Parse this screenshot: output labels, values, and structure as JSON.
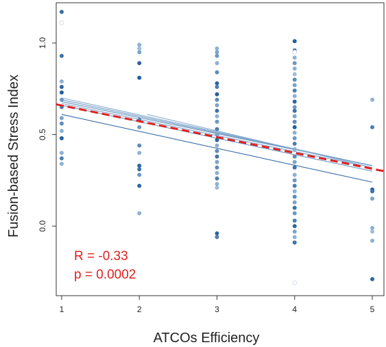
{
  "chart_data": {
    "type": "scatter",
    "title": "",
    "xlabel": "ATCOs Efficiency",
    "ylabel": "Fusion-based Stress Index",
    "xlim": [
      0.93,
      5.15
    ],
    "ylim": [
      -0.38,
      1.22
    ],
    "xticks": [
      1,
      2,
      3,
      4,
      5
    ],
    "xtick_labels": [
      "1",
      "2",
      "3",
      "4",
      "5"
    ],
    "yticks": [
      0.0,
      0.5,
      1.0
    ],
    "ytick_labels": [
      "0.0",
      "0.5",
      "1.0"
    ],
    "grid": false,
    "legend": "none",
    "colors": {
      "overall_fit": "#e02020",
      "points_dark": "#1f5a99",
      "points_light": "#bcd6ea",
      "annotation": "#e02020"
    },
    "points": [
      {
        "x": 1,
        "y": 1.17,
        "shade": 0.85
      },
      {
        "x": 1,
        "y": 1.11,
        "shade": 0.1
      },
      {
        "x": 1,
        "y": 0.93,
        "shade": 0.8
      },
      {
        "x": 1,
        "y": 0.79,
        "shade": 0.3
      },
      {
        "x": 1,
        "y": 0.76,
        "shade": 0.9
      },
      {
        "x": 1,
        "y": 0.73,
        "shade": 0.95
      },
      {
        "x": 1,
        "y": 0.69,
        "shade": 0.5
      },
      {
        "x": 1,
        "y": 0.65,
        "shade": 0.7
      },
      {
        "x": 1,
        "y": 0.59,
        "shade": 0.4
      },
      {
        "x": 1,
        "y": 0.56,
        "shade": 0.6
      },
      {
        "x": 1,
        "y": 0.52,
        "shade": 0.3
      },
      {
        "x": 1,
        "y": 0.48,
        "shade": 0.95
      },
      {
        "x": 1,
        "y": 0.4,
        "shade": 0.3
      },
      {
        "x": 1,
        "y": 0.37,
        "shade": 0.7
      },
      {
        "x": 1,
        "y": 0.34,
        "shade": 0.3
      },
      {
        "x": 2,
        "y": 0.99,
        "shade": 0.3
      },
      {
        "x": 2,
        "y": 0.97,
        "shade": 0.2
      },
      {
        "x": 2,
        "y": 0.95,
        "shade": 0.4
      },
      {
        "x": 2,
        "y": 0.89,
        "shade": 0.9
      },
      {
        "x": 2,
        "y": 0.81,
        "shade": 0.95
      },
      {
        "x": 2,
        "y": 0.58,
        "shade": 0.7
      },
      {
        "x": 2,
        "y": 0.54,
        "shade": 0.5
      },
      {
        "x": 2,
        "y": 0.44,
        "shade": 0.6
      },
      {
        "x": 2,
        "y": 0.4,
        "shade": 0.3
      },
      {
        "x": 2,
        "y": 0.33,
        "shade": 0.9
      },
      {
        "x": 2,
        "y": 0.31,
        "shade": 0.8
      },
      {
        "x": 2,
        "y": 0.28,
        "shade": 0.5
      },
      {
        "x": 2,
        "y": 0.22,
        "shade": 0.9
      },
      {
        "x": 2,
        "y": 0.07,
        "shade": 0.3
      },
      {
        "x": 3,
        "y": 0.97,
        "shade": 0.3
      },
      {
        "x": 3,
        "y": 0.95,
        "shade": 0.4
      },
      {
        "x": 3,
        "y": 0.93,
        "shade": 0.5
      },
      {
        "x": 3,
        "y": 0.89,
        "shade": 0.3
      },
      {
        "x": 3,
        "y": 0.84,
        "shade": 0.6
      },
      {
        "x": 3,
        "y": 0.78,
        "shade": 0.9
      },
      {
        "x": 3,
        "y": 0.76,
        "shade": 0.7
      },
      {
        "x": 3,
        "y": 0.72,
        "shade": 0.95
      },
      {
        "x": 3,
        "y": 0.69,
        "shade": 0.6
      },
      {
        "x": 3,
        "y": 0.66,
        "shade": 0.4
      },
      {
        "x": 3,
        "y": 0.63,
        "shade": 0.8
      },
      {
        "x": 3,
        "y": 0.6,
        "shade": 0.3
      },
      {
        "x": 3,
        "y": 0.57,
        "shade": 0.5
      },
      {
        "x": 3,
        "y": 0.53,
        "shade": 0.7
      },
      {
        "x": 3,
        "y": 0.5,
        "shade": 0.4
      },
      {
        "x": 3,
        "y": 0.47,
        "shade": 0.9
      },
      {
        "x": 3,
        "y": 0.44,
        "shade": 0.3
      },
      {
        "x": 3,
        "y": 0.41,
        "shade": 0.6
      },
      {
        "x": 3,
        "y": 0.38,
        "shade": 0.8
      },
      {
        "x": 3,
        "y": 0.35,
        "shade": 0.4
      },
      {
        "x": 3,
        "y": 0.32,
        "shade": 0.6
      },
      {
        "x": 3,
        "y": 0.29,
        "shade": 0.3
      },
      {
        "x": 3,
        "y": 0.26,
        "shade": 0.7
      },
      {
        "x": 3,
        "y": 0.23,
        "shade": 0.3
      },
      {
        "x": 3,
        "y": 0.21,
        "shade": 0.2
      },
      {
        "x": 3,
        "y": -0.04,
        "shade": 0.9
      },
      {
        "x": 3,
        "y": -0.06,
        "shade": 0.7
      },
      {
        "x": 4,
        "y": 1.01,
        "shade": 0.95
      },
      {
        "x": 4,
        "y": 0.96,
        "shade": 0.7
      },
      {
        "x": 4,
        "y": 0.95,
        "shade": 0.1
      },
      {
        "x": 4,
        "y": 0.92,
        "shade": 0.3
      },
      {
        "x": 4,
        "y": 0.89,
        "shade": 0.5
      },
      {
        "x": 4,
        "y": 0.86,
        "shade": 0.3
      },
      {
        "x": 4,
        "y": 0.83,
        "shade": 0.2
      },
      {
        "x": 4,
        "y": 0.8,
        "shade": 0.6
      },
      {
        "x": 4,
        "y": 0.77,
        "shade": 0.4
      },
      {
        "x": 4,
        "y": 0.74,
        "shade": 0.7
      },
      {
        "x": 4,
        "y": 0.71,
        "shade": 0.3
      },
      {
        "x": 4,
        "y": 0.68,
        "shade": 0.9
      },
      {
        "x": 4,
        "y": 0.65,
        "shade": 0.5
      },
      {
        "x": 4,
        "y": 0.63,
        "shade": 0.8
      },
      {
        "x": 4,
        "y": 0.6,
        "shade": 0.4
      },
      {
        "x": 4,
        "y": 0.57,
        "shade": 0.6
      },
      {
        "x": 4,
        "y": 0.54,
        "shade": 0.95
      },
      {
        "x": 4,
        "y": 0.51,
        "shade": 0.3
      },
      {
        "x": 4,
        "y": 0.48,
        "shade": 0.5
      },
      {
        "x": 4,
        "y": 0.45,
        "shade": 0.7
      },
      {
        "x": 4,
        "y": 0.42,
        "shade": 0.3
      },
      {
        "x": 4,
        "y": 0.38,
        "shade": 0.6
      },
      {
        "x": 4,
        "y": 0.35,
        "shade": 0.4
      },
      {
        "x": 4,
        "y": 0.32,
        "shade": 0.8
      },
      {
        "x": 4,
        "y": 0.28,
        "shade": 0.3
      },
      {
        "x": 4,
        "y": 0.25,
        "shade": 0.5
      },
      {
        "x": 4,
        "y": 0.22,
        "shade": 0.7
      },
      {
        "x": 4,
        "y": 0.19,
        "shade": 0.3
      },
      {
        "x": 4,
        "y": 0.16,
        "shade": 0.6
      },
      {
        "x": 4,
        "y": 0.13,
        "shade": 0.4
      },
      {
        "x": 4,
        "y": 0.1,
        "shade": 0.8
      },
      {
        "x": 4,
        "y": 0.07,
        "shade": 0.5
      },
      {
        "x": 4,
        "y": 0.03,
        "shade": 0.7
      },
      {
        "x": 4,
        "y": 0.0,
        "shade": 0.9
      },
      {
        "x": 4,
        "y": -0.03,
        "shade": 0.4
      },
      {
        "x": 4,
        "y": -0.06,
        "shade": 0.3
      },
      {
        "x": 4,
        "y": -0.09,
        "shade": 0.8
      },
      {
        "x": 4,
        "y": -0.31,
        "shade": 0.1
      },
      {
        "x": 5,
        "y": 0.69,
        "shade": 0.3
      },
      {
        "x": 5,
        "y": 0.54,
        "shade": 0.7
      },
      {
        "x": 5,
        "y": 0.2,
        "shade": 0.95
      },
      {
        "x": 5,
        "y": 0.19,
        "shade": 0.8
      },
      {
        "x": 5,
        "y": 0.15,
        "shade": 0.4
      },
      {
        "x": 5,
        "y": -0.01,
        "shade": 0.3
      },
      {
        "x": 5,
        "y": -0.03,
        "shade": 0.2
      },
      {
        "x": 5,
        "y": -0.08,
        "shade": 0.3
      },
      {
        "x": 5,
        "y": -0.29,
        "shade": 0.9
      }
    ],
    "fit_lines": [
      {
        "x": [
          1,
          5
        ],
        "y": [
          0.7,
          0.33
        ],
        "shade": 0.35
      },
      {
        "x": [
          1,
          5
        ],
        "y": [
          0.69,
          0.33
        ],
        "shade": 0.45
      },
      {
        "x": [
          1,
          5
        ],
        "y": [
          0.68,
          0.33
        ],
        "shade": 0.55
      },
      {
        "x": [
          1,
          5
        ],
        "y": [
          0.67,
          0.32
        ],
        "shade": 0.4
      },
      {
        "x": [
          1,
          5
        ],
        "y": [
          0.66,
          0.3
        ],
        "shade": 0.5
      },
      {
        "x": [
          1,
          5
        ],
        "y": [
          0.61,
          0.24
        ],
        "shade": 0.85
      },
      {
        "x": [
          2.1,
          5
        ],
        "y": [
          0.61,
          0.32
        ],
        "shade": 0.3
      }
    ],
    "overall_fit": {
      "x": [
        0.93,
        5.15
      ],
      "y": [
        0.665,
        0.3
      ]
    },
    "annotations": [
      "R = -0.33",
      "p = 0.0002"
    ]
  }
}
